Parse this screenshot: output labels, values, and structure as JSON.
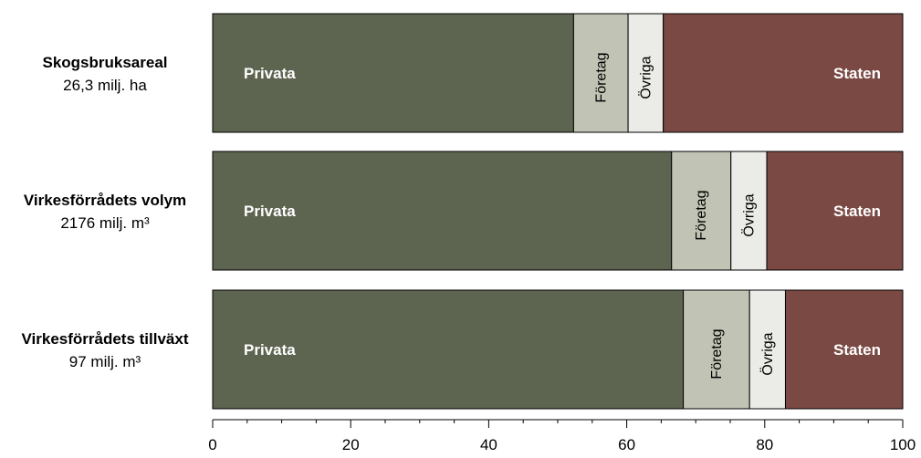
{
  "chart_data": {
    "type": "bar",
    "orientation": "horizontal",
    "stacked": true,
    "categories": [
      {
        "title": "Skogsbruksareal",
        "subtitle": "26,3 milj. ha"
      },
      {
        "title": "Virkesförrådets volym",
        "subtitle": "2176 milj. m³"
      },
      {
        "title": "Virkesförrådets tillväxt",
        "subtitle": "97 milj. m³"
      }
    ],
    "series": [
      {
        "name": "Privata",
        "color": "#5d6450",
        "label_style": "horizontal",
        "values": [
          52.3,
          66.5,
          68.2
        ]
      },
      {
        "name": "Företag",
        "color": "#c1c4b4",
        "label_style": "vertical",
        "values": [
          7.9,
          8.6,
          9.6
        ]
      },
      {
        "name": "Övriga",
        "color": "#ebece7",
        "label_style": "vertical",
        "values": [
          5.1,
          5.2,
          5.2
        ]
      },
      {
        "name": "Staten",
        "color": "#7b4943",
        "label_style": "horizontal",
        "values": [
          34.7,
          19.7,
          17.0
        ]
      }
    ],
    "xlim": [
      0,
      100
    ],
    "xticks": [
      0,
      20,
      40,
      60,
      80,
      100
    ],
    "grid": false,
    "legend": "none"
  }
}
